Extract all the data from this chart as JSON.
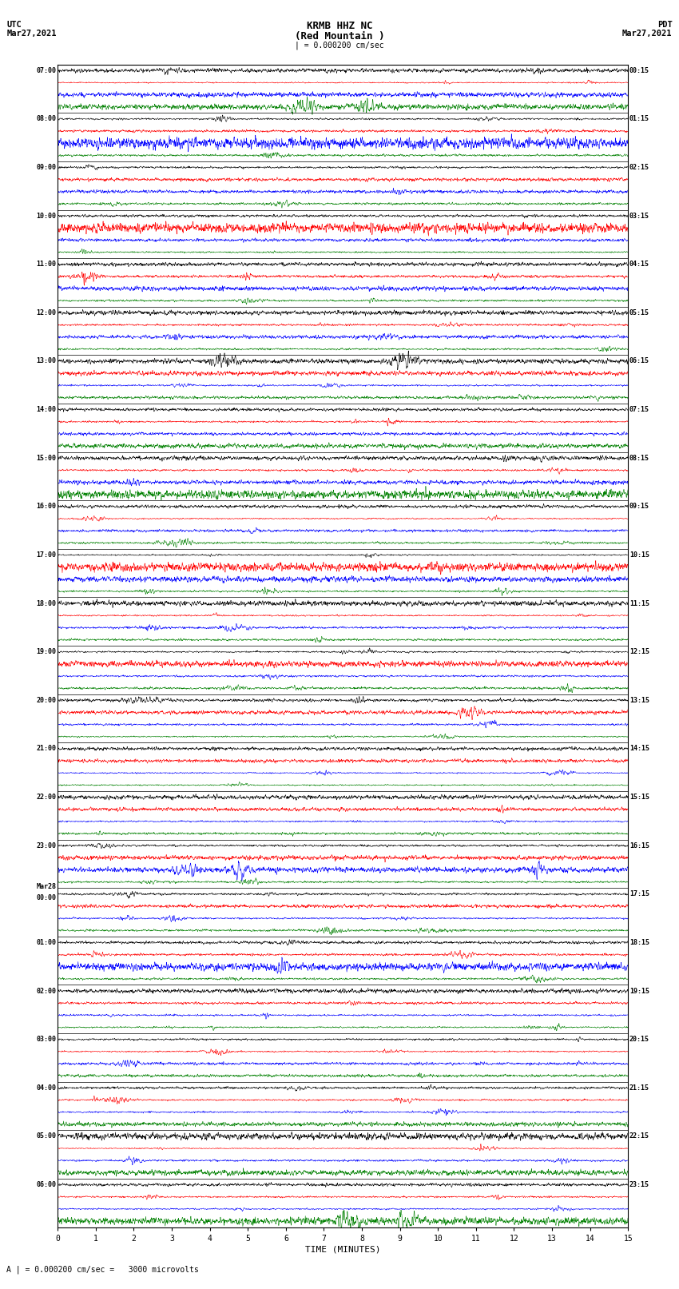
{
  "title_line1": "KRMB HHZ NC",
  "title_line2": "(Red Mountain )",
  "scale_label": "| = 0.000200 cm/sec",
  "utc_label": "UTC",
  "pdt_label": "PDT",
  "date_left": "Mar27,2021",
  "date_right": "Mar27,2021",
  "bottom_scale": "A | = 0.000200 cm/sec =   3000 microvolts",
  "xlabel": "TIME (MINUTES)",
  "xlim": [
    0,
    15
  ],
  "xticks": [
    0,
    1,
    2,
    3,
    4,
    5,
    6,
    7,
    8,
    9,
    10,
    11,
    12,
    13,
    14,
    15
  ],
  "colors": [
    "black",
    "red",
    "blue",
    "green"
  ],
  "left_times": [
    "07:00",
    "08:00",
    "09:00",
    "10:00",
    "11:00",
    "12:00",
    "13:00",
    "14:00",
    "15:00",
    "16:00",
    "17:00",
    "18:00",
    "19:00",
    "20:00",
    "21:00",
    "22:00",
    "23:00",
    "Mar28\n00:00",
    "01:00",
    "02:00",
    "03:00",
    "04:00",
    "05:00",
    "06:00"
  ],
  "right_times": [
    "00:15",
    "01:15",
    "02:15",
    "03:15",
    "04:15",
    "05:15",
    "06:15",
    "07:15",
    "08:15",
    "09:15",
    "10:15",
    "11:15",
    "12:15",
    "13:15",
    "14:15",
    "15:15",
    "16:15",
    "17:15",
    "18:15",
    "19:15",
    "20:15",
    "21:15",
    "22:15",
    "23:15"
  ],
  "n_rows": 24,
  "traces_per_row": 4,
  "fig_width": 8.5,
  "fig_height": 16.13,
  "bg_color": "white",
  "trace_lw": 0.4,
  "noise_seed": 42,
  "amplitude_scale": 0.38
}
